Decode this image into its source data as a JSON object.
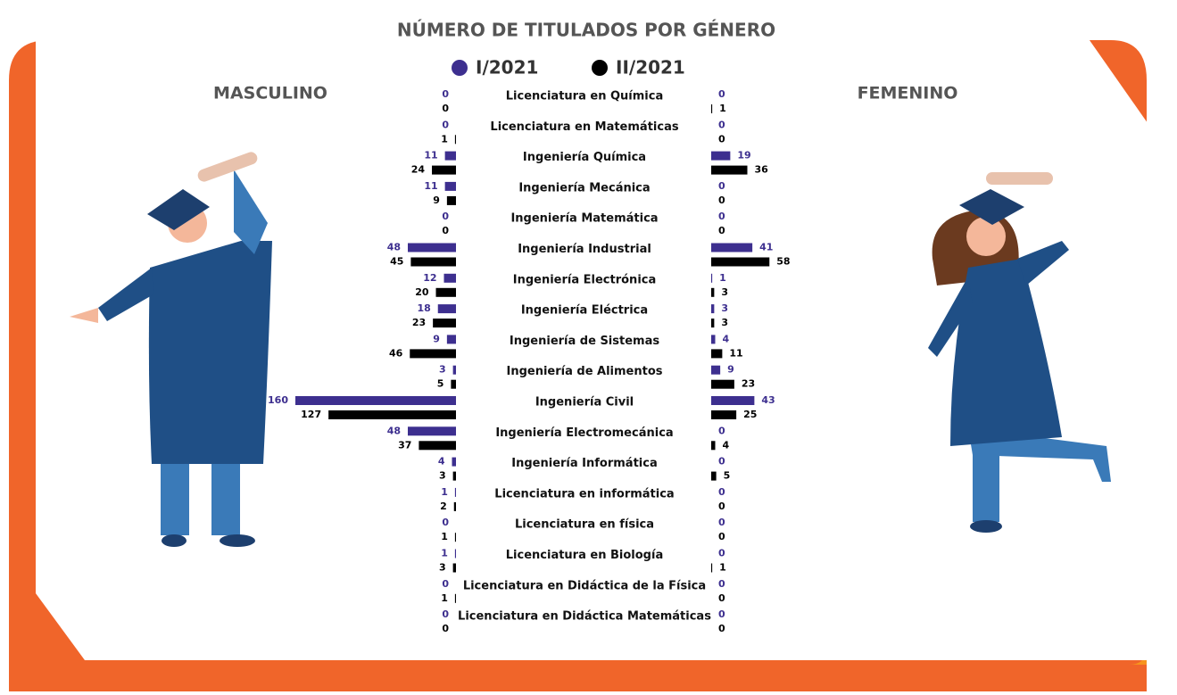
{
  "chart_data": {
    "type": "butterfly_bar",
    "title": "NÚMERO DE TITULADOS POR GÉNERO",
    "legend": [
      {
        "name": "I/2021",
        "color": "#3d2f8f"
      },
      {
        "name": "II/2021",
        "color": "#000000"
      }
    ],
    "categories": [
      "Licenciatura en Química",
      "Licenciatura en Matemáticas",
      "Ingeniería Química",
      "Ingeniería Mecánica",
      "Ingeniería Matemática",
      "Ingeniería Industrial",
      "Ingeniería Electrónica",
      "Ingeniería Eléctrica",
      "Ingeniería de Sistemas",
      "Ingeniería de Alimentos",
      "Ingeniería Civil",
      "Ingeniería Electromecánica",
      "Ingeniería Informática",
      "Licenciatura en informática",
      "Licenciatura en física",
      "Licenciatura en Biología",
      "Licenciatura en Didáctica de la Física",
      "Licenciatura en Didáctica Matemáticas"
    ],
    "groups": [
      {
        "name": "MASCULINO",
        "series": [
          {
            "values": [
              0,
              0,
              11,
              11,
              0,
              48,
              12,
              18,
              9,
              3,
              160,
              48,
              4,
              1,
              0,
              1,
              0,
              0
            ]
          },
          {
            "values": [
              0,
              1,
              24,
              9,
              0,
              45,
              20,
              23,
              46,
              5,
              127,
              37,
              3,
              2,
              1,
              3,
              1,
              0
            ]
          }
        ]
      },
      {
        "name": "FEMENINO",
        "series": [
          {
            "values": [
              0,
              0,
              19,
              0,
              0,
              41,
              1,
              3,
              4,
              9,
              43,
              0,
              0,
              0,
              0,
              0,
              0,
              0
            ]
          },
          {
            "values": [
              1,
              0,
              36,
              0,
              0,
              58,
              3,
              3,
              11,
              23,
              25,
              4,
              5,
              0,
              0,
              1,
              0,
              0
            ]
          }
        ]
      }
    ]
  }
}
